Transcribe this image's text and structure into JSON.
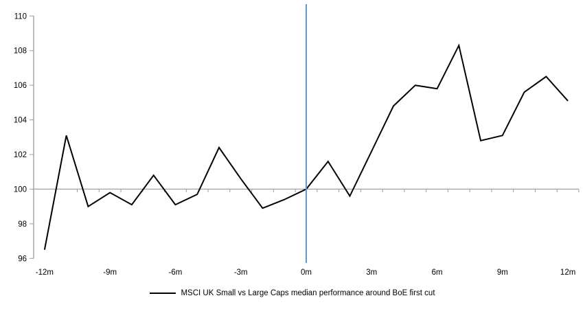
{
  "chart_data": {
    "type": "line",
    "title": "",
    "xlabel": "",
    "ylabel": "",
    "legend": "MSCI UK Small vs Large Caps median performance around BoE first cut",
    "legend_position": "bottom-center",
    "grid": false,
    "ylim": [
      96,
      110
    ],
    "y_ticks": [
      96,
      98,
      100,
      102,
      104,
      106,
      108,
      110
    ],
    "baseline_value": 100,
    "event_line_month": 0,
    "x_axis_ticks": [
      {
        "month": -12,
        "label": "-12m"
      },
      {
        "month": -9,
        "label": "-9m"
      },
      {
        "month": -6,
        "label": "-6m"
      },
      {
        "month": -3,
        "label": "-3m"
      },
      {
        "month": 0,
        "label": "0m"
      },
      {
        "month": 3,
        "label": "3m"
      },
      {
        "month": 6,
        "label": "6m"
      },
      {
        "month": 9,
        "label": "9m"
      },
      {
        "month": 12,
        "label": "12m"
      }
    ],
    "x_months": [
      -12,
      -11,
      -10,
      -9,
      -8,
      -7,
      -6,
      -5,
      -4,
      -3,
      -2,
      -1,
      0,
      1,
      2,
      3,
      4,
      5,
      6,
      7,
      8,
      9,
      10,
      11,
      12
    ],
    "series": [
      {
        "name": "MSCI UK Small vs Large Caps median performance around BoE first cut",
        "values": [
          96.5,
          103.1,
          99.0,
          99.8,
          99.1,
          100.8,
          99.1,
          99.7,
          102.4,
          100.6,
          98.9,
          99.4,
          100.0,
          101.6,
          99.6,
          102.2,
          104.8,
          106.0,
          105.8,
          108.3,
          102.8,
          103.1,
          105.6,
          106.5,
          105.1
        ]
      }
    ],
    "colors": {
      "series_line": "#000000",
      "event_line": "#5B9BD5",
      "axis": "#9B9B9B",
      "baseline": "#A6A6A6",
      "text": "#000000"
    }
  }
}
